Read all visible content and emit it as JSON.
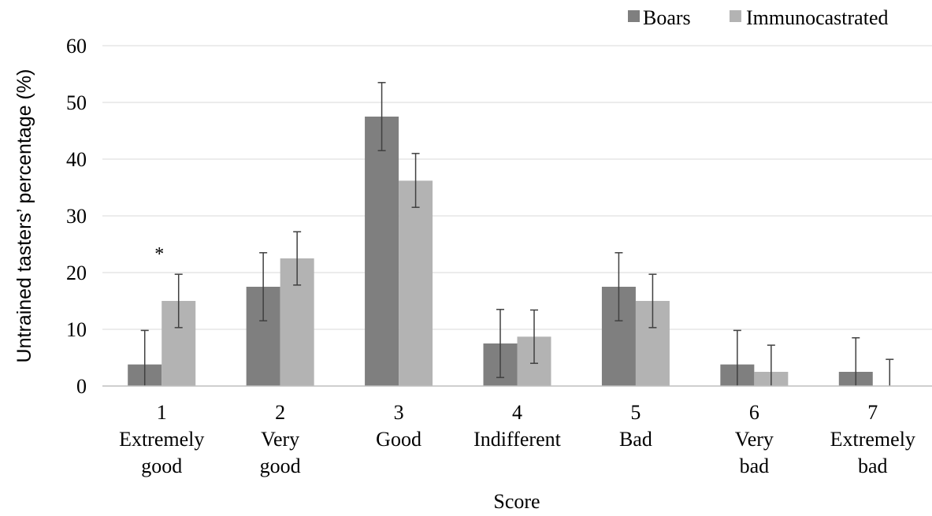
{
  "chart_data": {
    "type": "bar",
    "title": "",
    "xlabel": "Score",
    "ylabel": "Untrained tasters’ percentage  (%)",
    "ylim": [
      0,
      60
    ],
    "yticks": [
      "0",
      "10",
      "20",
      "30",
      "40",
      "50",
      "60"
    ],
    "grid": true,
    "legend_position": "top-right",
    "categories": [
      [
        "1",
        "Extremely",
        "good"
      ],
      [
        "2",
        "Very",
        "good"
      ],
      [
        "3",
        "Good"
      ],
      [
        "4",
        "Indifferent"
      ],
      [
        "5",
        "Bad"
      ],
      [
        "6",
        "Very",
        "bad"
      ],
      [
        "7",
        "Extremely",
        "bad"
      ]
    ],
    "series": [
      {
        "name": "Boars",
        "color": "#7f7f7f",
        "values": [
          3.8,
          17.5,
          47.5,
          7.5,
          17.5,
          3.8,
          2.5
        ],
        "error_upper": [
          9.8,
          23.5,
          53.5,
          13.5,
          23.5,
          9.8,
          8.5
        ],
        "error_lower": [
          0,
          11.5,
          41.5,
          1.5,
          11.5,
          0,
          0
        ]
      },
      {
        "name": "Immunocastrated",
        "color": "#b3b3b3",
        "values": [
          15,
          22.5,
          36.2,
          8.7,
          15,
          2.5,
          0
        ],
        "error_upper": [
          19.7,
          27.2,
          41,
          13.4,
          19.7,
          7.2,
          4.7
        ],
        "error_lower": [
          10.3,
          17.8,
          31.5,
          4,
          10.3,
          0,
          0
        ]
      }
    ],
    "annotations": [
      {
        "text": "*",
        "category_index": 0
      }
    ]
  }
}
